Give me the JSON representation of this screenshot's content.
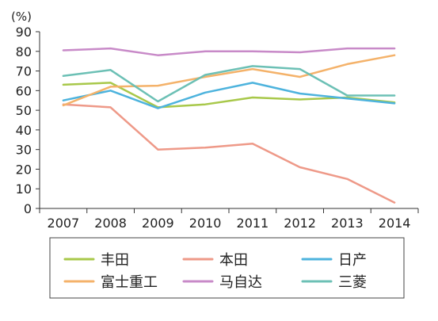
{
  "chart_data": {
    "type": "line",
    "unit_label": "(%)",
    "x": [
      "2007",
      "2008",
      "2009",
      "2010",
      "2011",
      "2012",
      "2013",
      "2014"
    ],
    "ylim": [
      0,
      90
    ],
    "yticks": [
      0,
      10,
      20,
      30,
      40,
      50,
      60,
      70,
      80,
      90
    ],
    "grid": false,
    "legend_position": "bottom",
    "series": [
      {
        "name": "丰田",
        "color": "#a8c84a",
        "values": [
          63,
          64,
          51.5,
          53,
          56.5,
          55.5,
          56.5,
          54
        ]
      },
      {
        "name": "本田",
        "color": "#ee9988",
        "values": [
          53,
          51.5,
          30,
          31,
          33,
          21,
          15,
          3
        ]
      },
      {
        "name": "日产",
        "color": "#4db3dd",
        "values": [
          55,
          60,
          51,
          59,
          64,
          58.5,
          56,
          53.5
        ]
      },
      {
        "name": "富士重工",
        "color": "#f4b26a",
        "values": [
          52.5,
          62,
          62.5,
          67,
          71,
          67,
          73.5,
          78
        ]
      },
      {
        "name": "马自达",
        "color": "#c88ac8",
        "values": [
          80.5,
          81.5,
          78,
          80,
          80,
          79.5,
          81.5,
          81.5
        ]
      },
      {
        "name": "三菱",
        "color": "#6cc0b5",
        "values": [
          67.5,
          70.5,
          54.5,
          68,
          72.5,
          71,
          57.5,
          57.5
        ]
      }
    ]
  }
}
